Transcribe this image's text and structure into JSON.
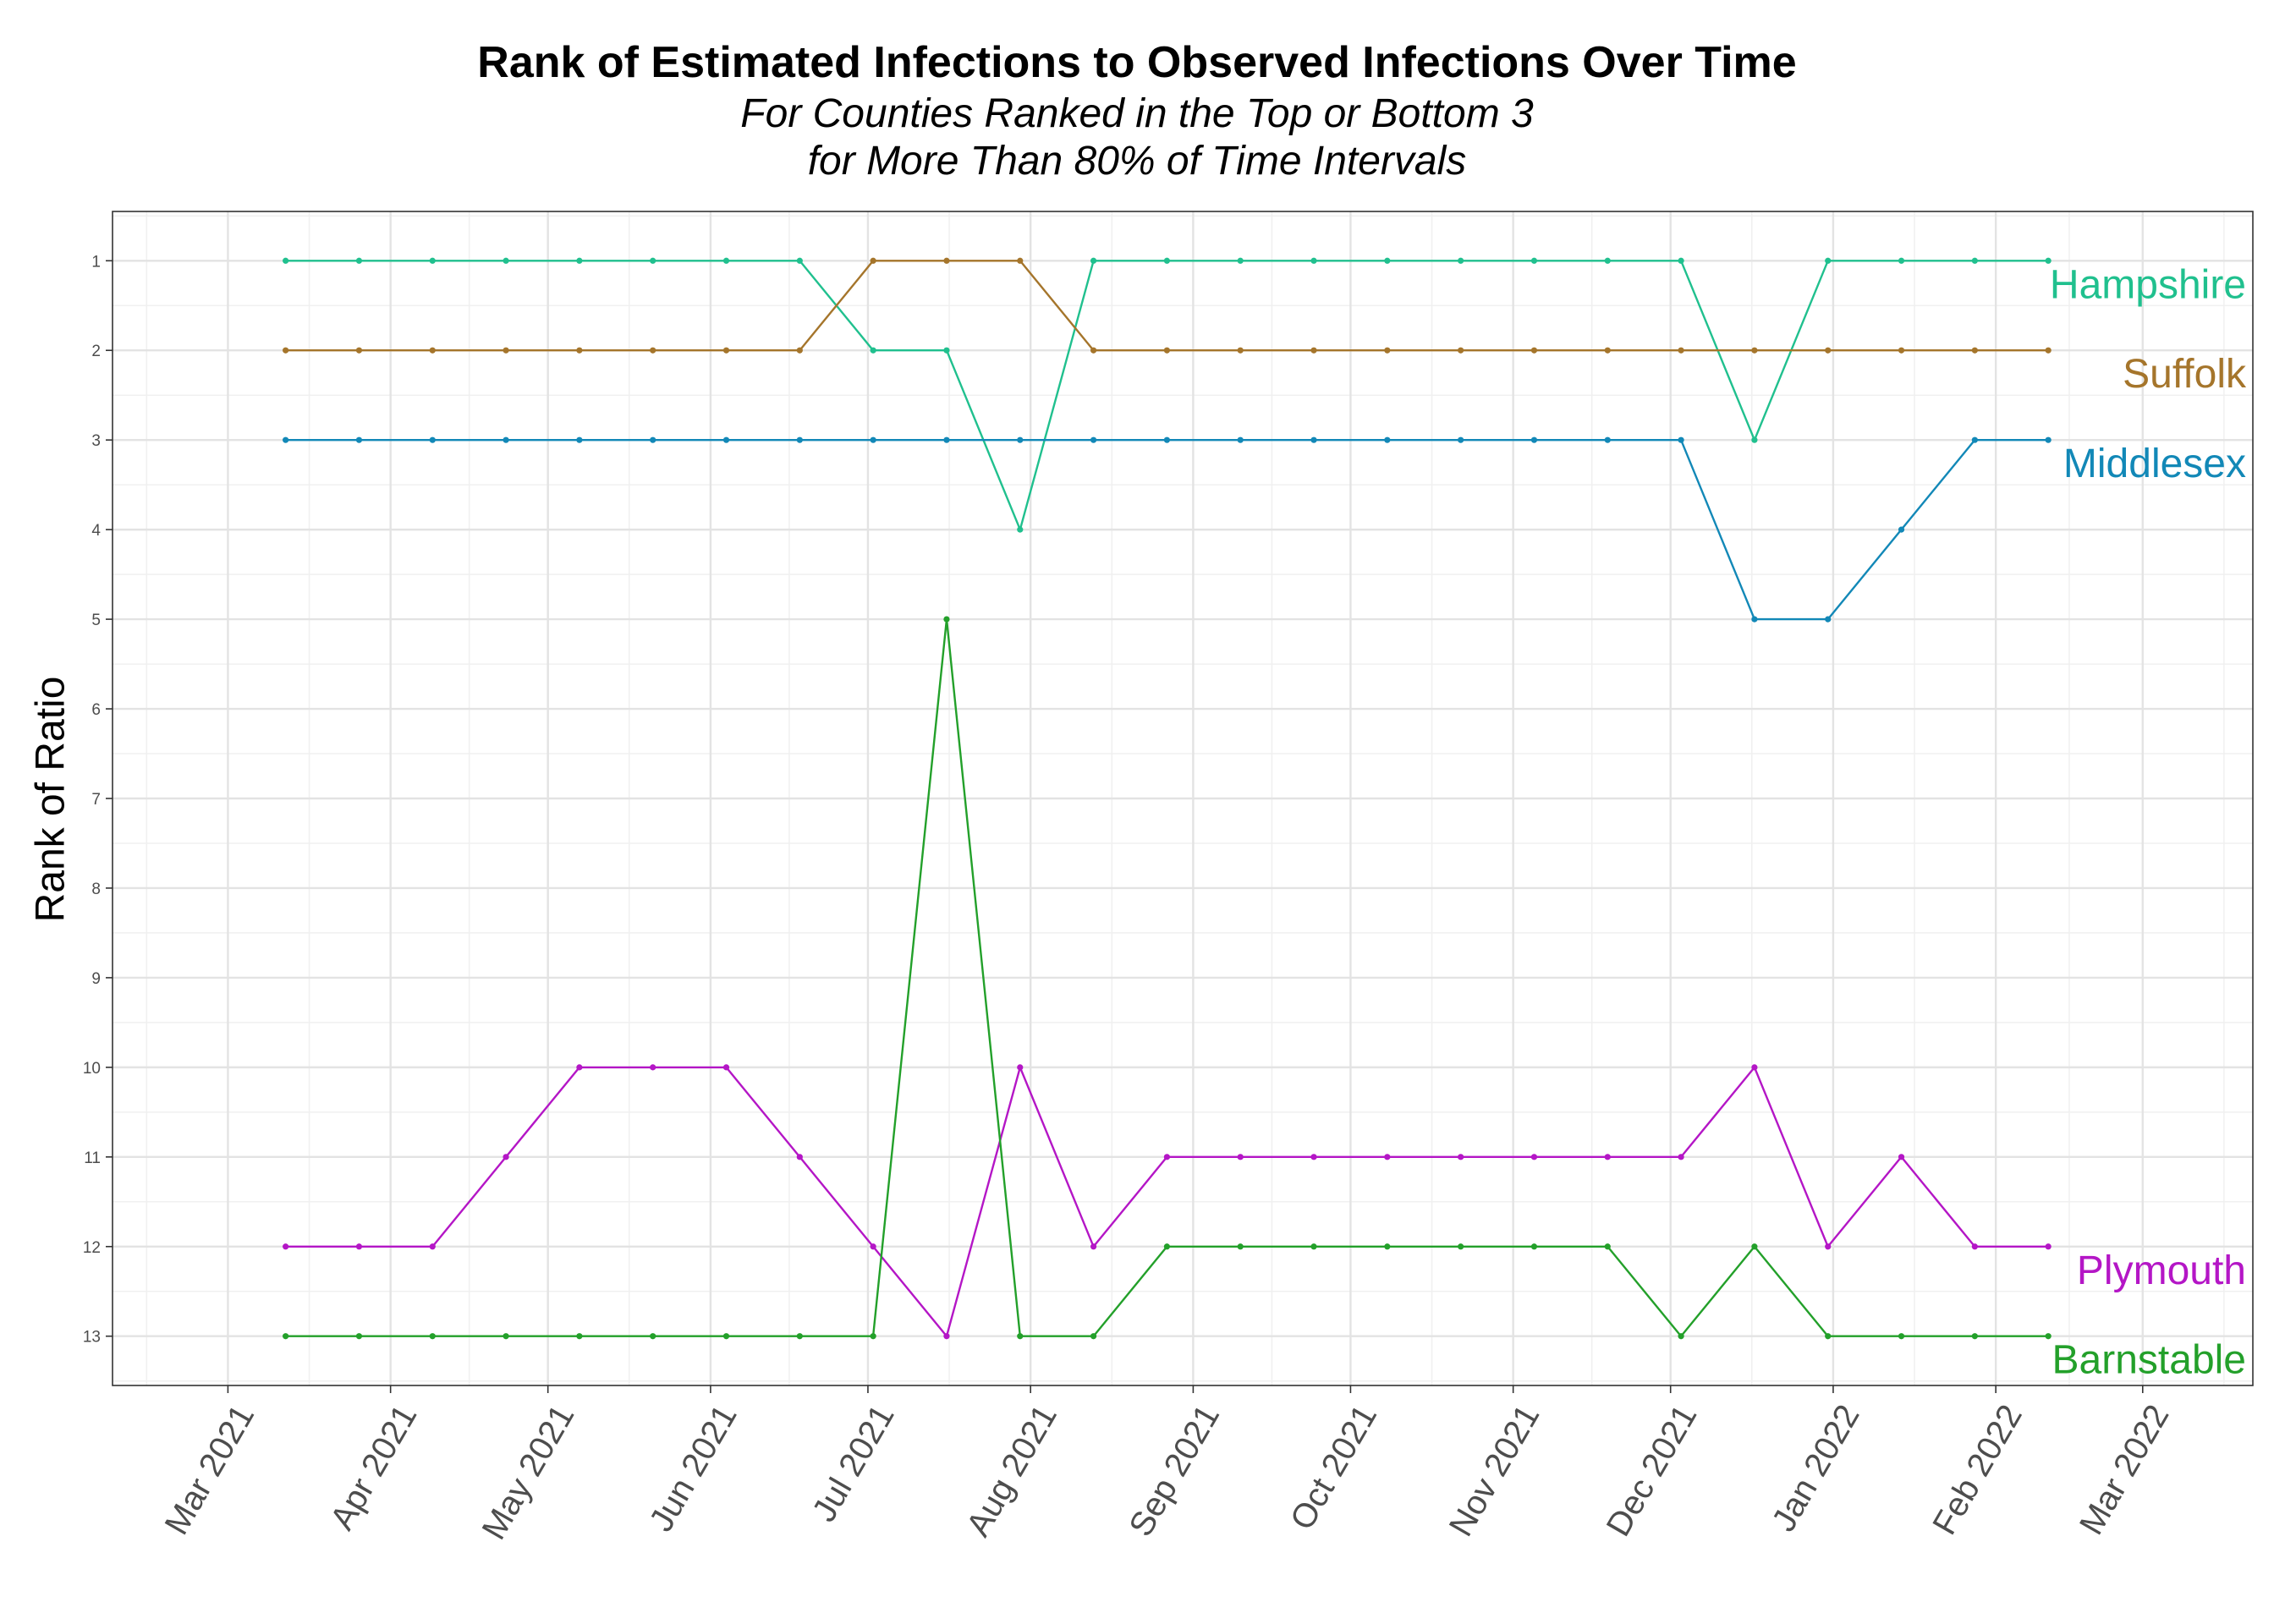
{
  "chart_data": {
    "type": "line",
    "title": "Rank of Estimated Infections to Observed Infections Over Time",
    "subtitle_lines": [
      "For Counties Ranked in the Top or Bottom 3",
      "for More Than 80% of Time Intervals"
    ],
    "xlabel": "",
    "ylabel": "Rank of Ratio",
    "y_reversed": true,
    "ylim": [
      0.45,
      13.55
    ],
    "yticks": [
      1,
      2,
      3,
      4,
      5,
      6,
      7,
      8,
      9,
      10,
      11,
      12,
      13
    ],
    "xlim": [
      "2021-02-07",
      "2022-03-22"
    ],
    "xtick_dates": [
      "2021-03-01",
      "2021-04-01",
      "2021-05-01",
      "2021-06-01",
      "2021-07-01",
      "2021-08-01",
      "2021-09-01",
      "2021-10-01",
      "2021-11-01",
      "2021-12-01",
      "2022-01-01",
      "2022-02-01",
      "2022-03-01"
    ],
    "xtick_labels": [
      "Mar 2021",
      "Apr 2021",
      "May 2021",
      "Jun 2021",
      "Jul 2021",
      "Aug 2021",
      "Sep 2021",
      "Oct 2021",
      "Nov 2021",
      "Dec 2021",
      "Jan 2022",
      "Feb 2022",
      "Mar 2022"
    ],
    "grid": true,
    "legend": "direct labels at right end of lines",
    "x": [
      "2021-03-12",
      "2021-03-26",
      "2021-04-09",
      "2021-04-23",
      "2021-05-07",
      "2021-05-21",
      "2021-06-04",
      "2021-06-18",
      "2021-07-02",
      "2021-07-16",
      "2021-07-30",
      "2021-08-13",
      "2021-08-27",
      "2021-09-10",
      "2021-09-24",
      "2021-10-08",
      "2021-10-22",
      "2021-11-05",
      "2021-11-19",
      "2021-12-03",
      "2021-12-17",
      "2021-12-31",
      "2022-01-14",
      "2022-01-28",
      "2022-02-11"
    ],
    "series": [
      {
        "name": "Hampshire",
        "color": "#20c08e",
        "values": [
          1,
          1,
          1,
          1,
          1,
          1,
          1,
          1,
          2,
          2,
          4,
          1,
          1,
          1,
          1,
          1,
          1,
          1,
          1,
          1,
          3,
          1,
          1,
          1,
          1
        ]
      },
      {
        "name": "Suffolk",
        "color": "#a5752b",
        "values": [
          2,
          2,
          2,
          2,
          2,
          2,
          2,
          2,
          1,
          1,
          1,
          2,
          2,
          2,
          2,
          2,
          2,
          2,
          2,
          2,
          2,
          2,
          2,
          2,
          2
        ]
      },
      {
        "name": "Middlesex",
        "color": "#1288b7",
        "values": [
          3,
          3,
          3,
          3,
          3,
          3,
          3,
          3,
          3,
          3,
          3,
          3,
          3,
          3,
          3,
          3,
          3,
          3,
          3,
          3,
          5,
          5,
          4,
          3,
          3
        ]
      },
      {
        "name": "Plymouth",
        "color": "#b416c6",
        "values": [
          12,
          12,
          12,
          11,
          10,
          10,
          10,
          11,
          12,
          13,
          10,
          12,
          11,
          11,
          11,
          11,
          11,
          11,
          11,
          11,
          10,
          12,
          11,
          12,
          12
        ]
      },
      {
        "name": "Barnstable",
        "color": "#23a02a",
        "values": [
          13,
          13,
          13,
          13,
          13,
          13,
          13,
          13,
          13,
          5,
          13,
          13,
          12,
          12,
          12,
          12,
          12,
          12,
          12,
          13,
          12,
          13,
          13,
          13,
          13
        ]
      }
    ]
  }
}
